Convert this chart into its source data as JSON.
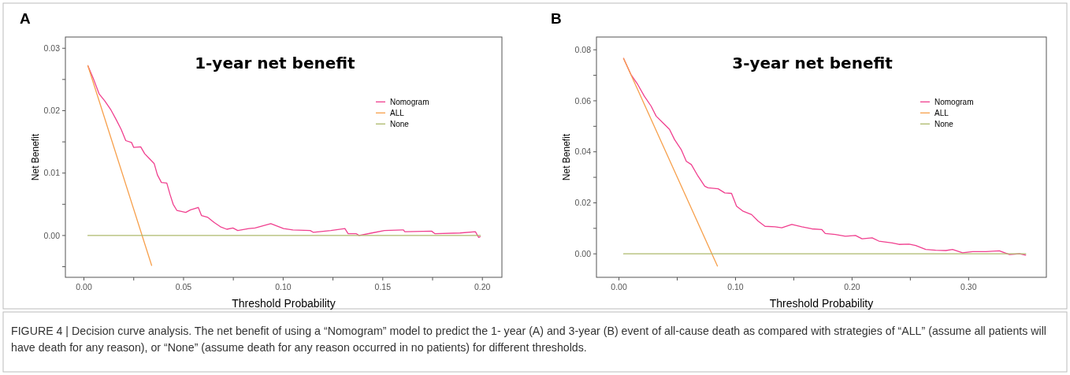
{
  "chart_data": [
    {
      "type": "line",
      "title": "1-year net benefit",
      "xlabel": "Threshold Probability",
      "ylabel": "Net Benefit",
      "annotations": [
        "A"
      ],
      "xlim": [
        -0.0093,
        0.2098
      ],
      "ylim": [
        -0.0067,
        0.0318
      ],
      "xticks": [
        {
          "value": 0,
          "label": "0.00"
        },
        {
          "value": 0.025,
          "label": null
        },
        {
          "value": 0.05,
          "label": "0.05"
        },
        {
          "value": 0.075,
          "label": null
        },
        {
          "value": 0.1,
          "label": "0.10"
        },
        {
          "value": 0.125,
          "label": null
        },
        {
          "value": 0.15,
          "label": "0.15"
        },
        {
          "value": 0.175,
          "label": null
        },
        {
          "value": 0.2,
          "label": "0.20"
        }
      ],
      "yticks": [
        {
          "value": -0.005,
          "label": null
        },
        {
          "value": 0,
          "label": "0.00"
        },
        {
          "value": 0.005,
          "label": null
        },
        {
          "value": 0.01,
          "label": "0.01"
        },
        {
          "value": 0.015,
          "label": null
        },
        {
          "value": 0.02,
          "label": "0.02"
        },
        {
          "value": 0.025,
          "label": null
        },
        {
          "value": 0.03,
          "label": "0.03"
        }
      ],
      "grid": false,
      "legend": "right",
      "marker": "none",
      "line_style": "solid",
      "series": [
        {
          "name": "Nomogram",
          "color": "#f0408f",
          "x": [
            0.002,
            0.0049,
            0.0076,
            0.0104,
            0.0136,
            0.0163,
            0.0187,
            0.021,
            0.0239,
            0.025,
            0.0285,
            0.0305,
            0.0329,
            0.0353,
            0.0369,
            0.0389,
            0.0416,
            0.0432,
            0.0448,
            0.0467,
            0.0511,
            0.0535,
            0.0574,
            0.059,
            0.0622,
            0.0653,
            0.0685,
            0.0717,
            0.0748,
            0.0772,
            0.0828,
            0.0859,
            0.0938,
            0.1002,
            0.1049,
            0.1136,
            0.1152,
            0.1239,
            0.131,
            0.1326,
            0.1366,
            0.1381,
            0.1445,
            0.1508,
            0.1603,
            0.1611,
            0.1745,
            0.1761,
            0.1888,
            0.1965,
            0.1981,
            0.1989
          ],
          "values": [
            0.0272,
            0.025,
            0.0227,
            0.0216,
            0.0201,
            0.0185,
            0.017,
            0.0152,
            0.0149,
            0.0141,
            0.0142,
            0.0131,
            0.0123,
            0.0115,
            0.0097,
            0.0085,
            0.0084,
            0.0066,
            0.005,
            0.004,
            0.0037,
            0.0041,
            0.0045,
            0.0032,
            0.0029,
            0.0021,
            0.0014,
            0.001,
            0.0012,
            0.0008,
            0.0011,
            0.0012,
            0.0019,
            0.0011,
            0.0009,
            0.0008,
            0.0005,
            0.0008,
            0.0011,
            0.0003,
            0.0003,
            0.0,
            0.0004,
            0.0008,
            0.0009,
            0.0006,
            0.0007,
            0.0003,
            0.0004,
            0.0006,
            -0.0003,
            -0.0002
          ]
        },
        {
          "name": "ALL",
          "color": "#f7a04c",
          "x": [
            0.002,
            0.034
          ],
          "values": [
            0.0272,
            -0.0048
          ]
        },
        {
          "name": "None",
          "color": "#adb96c",
          "x": [
            0.002,
            0.199
          ],
          "values": [
            0,
            0
          ]
        }
      ]
    },
    {
      "type": "line",
      "title": "3-year net benefit",
      "xlabel": "Threshold Probability",
      "ylabel": "Net Benefit",
      "annotations": [
        "B",
        "FIGURE 4 | Decision curve analysis. The net benefit of using a “Nomogram” model to predict the 1- year (A) and 3-year (B) event of all-cause death as compared with strategies of “ALL” (assume all patients will have death for any reason), or “None” (assume death for any reason occurred in no patients) for different thresholds."
      ],
      "xlim": [
        -0.0193,
        0.3667
      ],
      "ylim": [
        -0.0092,
        0.085
      ],
      "xticks": [
        {
          "value": 0,
          "label": "0.00"
        },
        {
          "value": 0.05,
          "label": null
        },
        {
          "value": 0.1,
          "label": "0.10"
        },
        {
          "value": 0.15,
          "label": null
        },
        {
          "value": 0.2,
          "label": "0.20"
        },
        {
          "value": 0.25,
          "label": null
        },
        {
          "value": 0.3,
          "label": "0.30"
        }
      ],
      "yticks": [
        {
          "value": 0,
          "label": "0.00"
        },
        {
          "value": 0.01,
          "label": null
        },
        {
          "value": 0.02,
          "label": "0.02"
        },
        {
          "value": 0.03,
          "label": null
        },
        {
          "value": 0.04,
          "label": "0.04"
        },
        {
          "value": 0.05,
          "label": null
        },
        {
          "value": 0.06,
          "label": "0.06"
        },
        {
          "value": 0.07,
          "label": null
        },
        {
          "value": 0.08,
          "label": "0.08"
        }
      ],
      "grid": false,
      "legend": "right",
      "marker": "none",
      "line_style": "solid",
      "series": [
        {
          "name": "Nomogram",
          "color": "#f0408f",
          "x": [
            0.004,
            0.0103,
            0.0161,
            0.0218,
            0.0276,
            0.0319,
            0.0376,
            0.0434,
            0.0477,
            0.0534,
            0.0578,
            0.0621,
            0.0678,
            0.0736,
            0.0764,
            0.0851,
            0.0908,
            0.0966,
            0.1009,
            0.1066,
            0.1138,
            0.1195,
            0.1253,
            0.1339,
            0.1397,
            0.1483,
            0.1569,
            0.1655,
            0.1741,
            0.177,
            0.1856,
            0.1943,
            0.2029,
            0.2086,
            0.2172,
            0.223,
            0.2345,
            0.2402,
            0.2489,
            0.2546,
            0.2632,
            0.2718,
            0.2805,
            0.2862,
            0.2948,
            0.3034,
            0.3149,
            0.3264,
            0.3351,
            0.3437,
            0.3489
          ],
          "values": [
            0.0766,
            0.0703,
            0.0664,
            0.0618,
            0.0579,
            0.054,
            0.0514,
            0.0488,
            0.0448,
            0.0409,
            0.0363,
            0.035,
            0.0305,
            0.0265,
            0.0259,
            0.0255,
            0.0239,
            0.0237,
            0.0187,
            0.0167,
            0.0154,
            0.0128,
            0.0108,
            0.0106,
            0.0102,
            0.0115,
            0.0106,
            0.0098,
            0.0095,
            0.008,
            0.0076,
            0.0069,
            0.0072,
            0.0059,
            0.0063,
            0.005,
            0.0043,
            0.0037,
            0.0038,
            0.0033,
            0.0017,
            0.0014,
            0.0013,
            0.0017,
            0.0004,
            0.0009,
            0.0009,
            0.0012,
            -0.0003,
            0,
            -0.0005
          ]
        },
        {
          "name": "ALL",
          "color": "#f7a04c",
          "x": [
            0.004,
            0.0845
          ],
          "values": [
            0.0766,
            -0.0048
          ]
        },
        {
          "name": "None",
          "color": "#adb96c",
          "x": [
            0.004,
            0.349
          ],
          "values": [
            0,
            0
          ]
        }
      ]
    }
  ]
}
